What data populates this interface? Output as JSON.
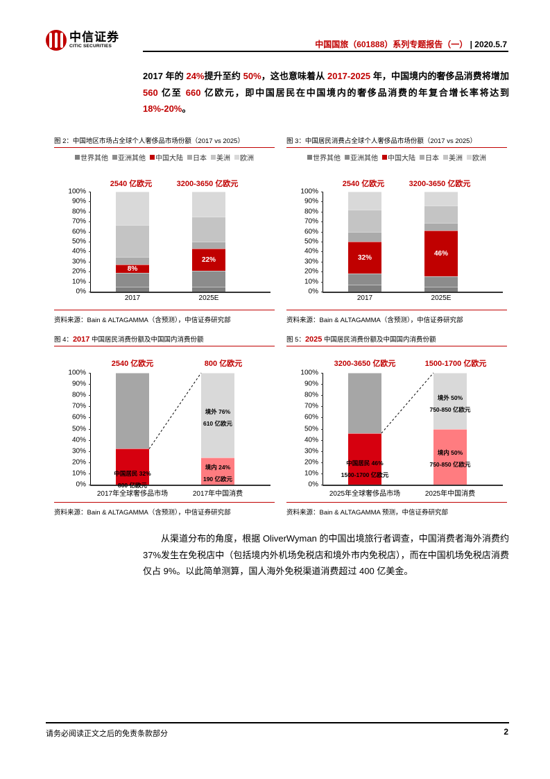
{
  "header": {
    "logo_cn": "中信证券",
    "logo_en": "CITIC SECURITIES",
    "report_title": "中国国旅（601888）系列专题报告（一）",
    "separator": " | ",
    "date": "2020.5.7"
  },
  "intro_paragraph": {
    "segments": [
      {
        "text": "2017 年的 ",
        "red": false
      },
      {
        "text": "24%",
        "red": true
      },
      {
        "text": "提升至约 ",
        "red": false
      },
      {
        "text": "50%",
        "red": true
      },
      {
        "text": "，这也意味着从 ",
        "red": false
      },
      {
        "text": "2017-2025",
        "red": true
      },
      {
        "text": " 年，中国境内的奢侈品消费将增加 ",
        "red": false
      },
      {
        "text": "560",
        "red": true
      },
      {
        "text": " 亿至 ",
        "red": false
      },
      {
        "text": "660",
        "red": true
      },
      {
        "text": " 亿欧元，即中国居民在中国境内的奢侈品消费的年复合增长率将达到 ",
        "red": false
      },
      {
        "text": "18%-20%",
        "red": true
      },
      {
        "text": "。",
        "red": false
      }
    ]
  },
  "colors": {
    "accent_red": "#c00000",
    "pink": "#ff7c80",
    "world_other": "#7f7f7f",
    "asia_other": "#8c8c8c",
    "china_mainland": "#c00000",
    "japan": "#ababab",
    "americas": "#c4c4c4",
    "europe": "#d9d9d9",
    "overseas_grey": "#a6a6a6"
  },
  "legend": [
    "世界其他",
    "亚洲其他",
    "中国大陆",
    "日本",
    "美洲",
    "欧洲"
  ],
  "figures": {
    "fig2": {
      "title": "图 2：中国地区市场占全球个人奢侈品市场份额（2017 vs 2025）",
      "source": "资料来源：Bain & ALTAGAMMA（含预测），中信证券研究部",
      "caps": [
        "2540 亿欧元",
        "3200-3650 亿欧元"
      ],
      "xlabels": [
        "2017",
        "2025E"
      ],
      "labels": [
        "8%",
        "22%"
      ]
    },
    "fig3": {
      "title": "图 3：中国居民消费占全球个人奢侈品市场份额（2017 vs 2025）",
      "source": "资料来源：Bain & ALTAGAMMA（含预测），中信证券研究部",
      "caps": [
        "2540 亿欧元",
        "3200-3650 亿欧元"
      ],
      "xlabels": [
        "2017",
        "2025E"
      ],
      "labels": [
        "32%",
        "46%"
      ]
    },
    "fig4": {
      "title_prefix": "图 4：",
      "title_year": "2017",
      "title_suffix": " 中国居民消费份额及中国国内消费份额",
      "source": "资料来源：Bain & ALTAGAMMA（含预测），中信证券研究部",
      "caps": [
        "2540 亿欧元",
        "800 亿欧元"
      ],
      "xlabels": [
        "2017年全球奢侈品市场",
        "2017年中国消费"
      ],
      "left_label_1": "中国居民  32%",
      "left_label_2": "800 亿欧元",
      "right_top_1": "境外  76%",
      "right_top_2": "610 亿欧元",
      "right_bottom_1": "境内  24%",
      "right_bottom_2": "190 亿欧元"
    },
    "fig5": {
      "title_prefix": "图 5：",
      "title_year": "2025",
      "title_suffix": " 中国居民消费份额及中国国内消费份额",
      "source": "资料来源：Bain & ALTAGAMMA 预测，中信证券研究部",
      "caps": [
        "3200-3650 亿欧元",
        "1500-1700 亿欧元"
      ],
      "xlabels": [
        "2025年全球奢侈品市场",
        "2025年中国消费"
      ],
      "left_label_1": "中国居民  46%",
      "left_label_2": "1500-1700 亿欧元",
      "right_top_1": "境外  50%",
      "right_top_2": "750-850 亿欧元",
      "right_bottom_1": "境内  50%",
      "right_bottom_2": "750-850 亿欧元"
    }
  },
  "yticks": [
    "100%",
    "90%",
    "80%",
    "70%",
    "60%",
    "50%",
    "40%",
    "30%",
    "20%",
    "10%",
    "0%"
  ],
  "body_paragraph": "从渠道分布的角度，根据 OliverWyman 的中国出境旅行者调查，中国消费者海外消费约 37%发生在免税店中（包括境内外机场免税店和境外市内免税店），而在中国机场免税店消费仅占 9%。以此简单测算，国人海外免税渠道消费超过 400 亿美金。",
  "footer": {
    "disclaimer": "请务必阅读正文之后的免责条款部分",
    "page_number": "2"
  },
  "chart_data": [
    {
      "type": "bar",
      "stacked": true,
      "title": "图 2：中国地区市场占全球个人奢侈品市场份额（2017 vs 2025）",
      "categories": [
        "2017",
        "2025E"
      ],
      "series": [
        {
          "name": "世界其他",
          "values": [
            5,
            5
          ]
        },
        {
          "name": "亚洲其他",
          "values": [
            14,
            16
          ]
        },
        {
          "name": "中国大陆",
          "values": [
            8,
            22
          ]
        },
        {
          "name": "日本",
          "values": [
            8,
            7
          ]
        },
        {
          "name": "美洲",
          "values": [
            32,
            25
          ]
        },
        {
          "name": "欧洲",
          "values": [
            33,
            25
          ]
        }
      ],
      "annotations": [
        "2540 亿欧元",
        "3200-3650 亿欧元"
      ],
      "ylim": [
        0,
        100
      ],
      "yunit": "%",
      "legend_position": "top"
    },
    {
      "type": "bar",
      "stacked": true,
      "title": "图 3：中国居民消费占全球个人奢侈品市场份额（2017 vs 2025）",
      "categories": [
        "2017",
        "2025E"
      ],
      "series": [
        {
          "name": "世界其他",
          "values": [
            7,
            5
          ]
        },
        {
          "name": "亚洲其他",
          "values": [
            11,
            10
          ]
        },
        {
          "name": "中国大陆",
          "values": [
            32,
            46
          ]
        },
        {
          "name": "日本",
          "values": [
            10,
            8
          ]
        },
        {
          "name": "美洲",
          "values": [
            22,
            17
          ]
        },
        {
          "name": "欧洲",
          "values": [
            18,
            14
          ]
        }
      ],
      "annotations": [
        "2540 亿欧元",
        "3200-3650 亿欧元"
      ],
      "ylim": [
        0,
        100
      ],
      "yunit": "%",
      "legend_position": "top"
    },
    {
      "type": "bar",
      "stacked": true,
      "title": "图 4：2017 中国居民消费份额及中国国内消费份额",
      "categories": [
        "2017年全球奢侈品市场",
        "2017年中国消费"
      ],
      "series": [
        {
          "name": "中国居民 / 境内",
          "values": [
            32,
            24
          ],
          "labels": [
            "中国居民 32% 800 亿欧元",
            "境内 24% 190 亿欧元"
          ]
        },
        {
          "name": "其他 / 境外",
          "values": [
            68,
            76
          ],
          "labels": [
            "",
            "境外 76% 610 亿欧元"
          ]
        }
      ],
      "annotations": [
        "2540 亿欧元",
        "800 亿欧元"
      ],
      "ylim": [
        0,
        100
      ],
      "yunit": "%"
    },
    {
      "type": "bar",
      "stacked": true,
      "title": "图 5：2025 中国居民消费份额及中国国内消费份额",
      "categories": [
        "2025年全球奢侈品市场",
        "2025年中国消费"
      ],
      "series": [
        {
          "name": "中国居民 / 境内",
          "values": [
            46,
            50
          ],
          "labels": [
            "中国居民 46% 1500-1700 亿欧元",
            "境内 50% 750-850 亿欧元"
          ]
        },
        {
          "name": "其他 / 境外",
          "values": [
            54,
            50
          ],
          "labels": [
            "",
            "境外 50% 750-850 亿欧元"
          ]
        }
      ],
      "annotations": [
        "3200-3650 亿欧元",
        "1500-1700 亿欧元"
      ],
      "ylim": [
        0,
        100
      ],
      "yunit": "%"
    }
  ]
}
